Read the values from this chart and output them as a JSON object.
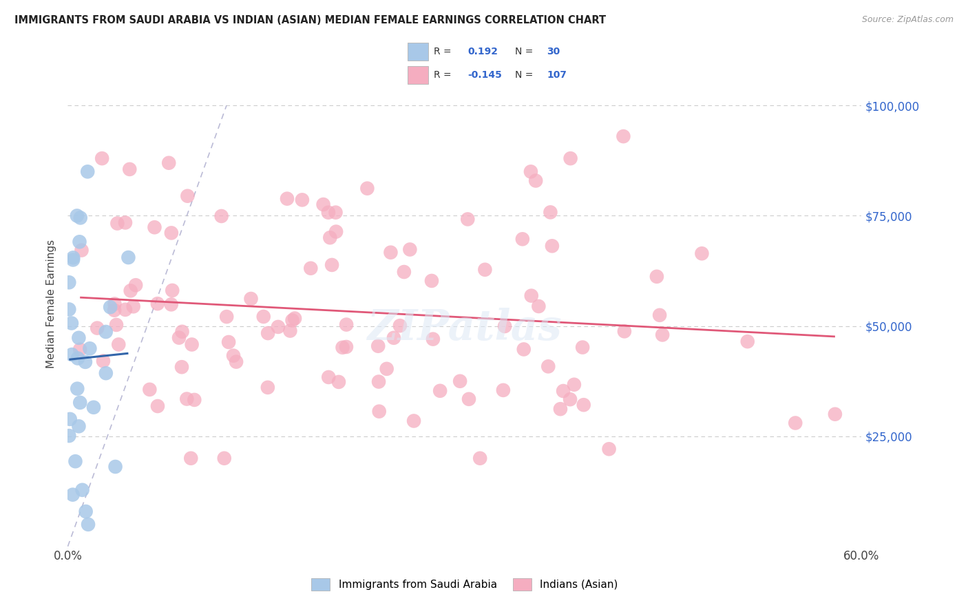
{
  "title": "IMMIGRANTS FROM SAUDI ARABIA VS INDIAN (ASIAN) MEDIAN FEMALE EARNINGS CORRELATION CHART",
  "source": "Source: ZipAtlas.com",
  "ylabel": "Median Female Earnings",
  "xlim": [
    0,
    0.6
  ],
  "ylim": [
    0,
    110000
  ],
  "yticks": [
    0,
    25000,
    50000,
    75000,
    100000
  ],
  "ytick_labels_right": [
    "",
    "$25,000",
    "$50,000",
    "$75,000",
    "$100,000"
  ],
  "xticks": [
    0.0,
    0.1,
    0.2,
    0.3,
    0.4,
    0.5,
    0.6
  ],
  "xtick_labels": [
    "0.0%",
    "",
    "",
    "",
    "",
    "",
    "60.0%"
  ],
  "blue_R": 0.192,
  "blue_N": 30,
  "pink_R": -0.145,
  "pink_N": 107,
  "blue_scatter_color": "#a8c8e8",
  "pink_scatter_color": "#f5adc0",
  "blue_line_color": "#3366aa",
  "pink_line_color": "#e05878",
  "legend_label_blue": "Immigrants from Saudi Arabia",
  "legend_label_pink": "Indians (Asian)",
  "watermark": "ZIPatlas",
  "title_color": "#222222",
  "source_color": "#999999",
  "grid_color": "#cccccc",
  "ref_line_color": "#aaaacc",
  "ylabel_color": "#444444",
  "right_tick_color": "#3366cc",
  "bottom_tick_color": "#444444"
}
